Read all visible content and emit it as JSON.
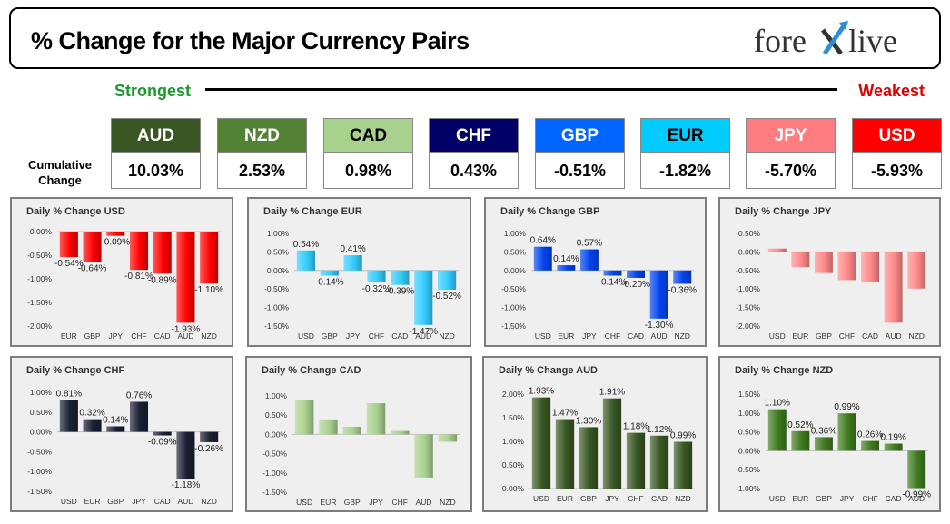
{
  "header": {
    "title": "% Change for the Major Currency Pairs",
    "logo_text_1": "fore",
    "logo_text_2": "live"
  },
  "ranking": {
    "strongest_label": "Strongest",
    "weakest_label": "Weakest",
    "cumulative_label_1": "Cumulative",
    "cumulative_label_2": "Change",
    "tiles": [
      {
        "currency": "AUD",
        "value": "10.03%",
        "color": "#385723",
        "text_color": "#ffffff"
      },
      {
        "currency": "NZD",
        "value": "2.53%",
        "color": "#548235",
        "text_color": "#ffffff"
      },
      {
        "currency": "CAD",
        "value": "0.98%",
        "color": "#a9d18e",
        "text_color": "#000000"
      },
      {
        "currency": "CHF",
        "value": "0.43%",
        "color": "#000066",
        "text_color": "#ffffff"
      },
      {
        "currency": "GBP",
        "value": "-0.51%",
        "color": "#0066ff",
        "text_color": "#ffffff"
      },
      {
        "currency": "EUR",
        "value": "-1.82%",
        "color": "#00ccff",
        "text_color": "#000000"
      },
      {
        "currency": "JPY",
        "value": "-5.70%",
        "color": "#ff7c80",
        "text_color": "#ffffff"
      },
      {
        "currency": "USD",
        "value": "-5.93%",
        "color": "#ff0000",
        "text_color": "#ffffff"
      }
    ]
  },
  "chart_data": [
    {
      "type": "bar",
      "title": "Daily % Change USD",
      "categories": [
        "EUR",
        "GBP",
        "JPY",
        "CHF",
        "CAD",
        "AUD",
        "NZD"
      ],
      "values": [
        -0.54,
        -0.64,
        -0.09,
        -0.81,
        -0.89,
        -1.93,
        -1.1
      ],
      "labels": [
        "-0.54%",
        "-0.64%",
        "-0.09%",
        "-0.81%",
        "-0.89%",
        "-1.93%",
        "-1.10%"
      ],
      "ylim": [
        -2.0,
        0.0
      ],
      "ticks": [
        0.0,
        -0.5,
        -1.0,
        -1.5,
        -2.0
      ],
      "color": "#ff0000"
    },
    {
      "type": "bar",
      "title": "Daily % Change EUR",
      "categories": [
        "USD",
        "GBP",
        "JPY",
        "CHF",
        "CAD",
        "AUD",
        "NZD"
      ],
      "values": [
        0.54,
        -0.14,
        0.41,
        -0.32,
        -0.39,
        -1.47,
        -0.52
      ],
      "labels": [
        "0.54%",
        "-0.14%",
        "0.41%",
        "-0.32%",
        "-0.39%",
        "-1.47%",
        "-0.52%"
      ],
      "ylim": [
        -1.5,
        1.0
      ],
      "ticks": [
        1.0,
        0.5,
        0.0,
        -0.5,
        -1.0,
        -1.5
      ],
      "color": "#33ccff"
    },
    {
      "type": "bar",
      "title": "Daily % Change GBP",
      "categories": [
        "USD",
        "EUR",
        "JPY",
        "CHF",
        "CAD",
        "AUD",
        "NZD"
      ],
      "values": [
        0.64,
        0.14,
        0.57,
        -0.14,
        -0.2,
        -1.3,
        -0.36
      ],
      "labels": [
        "0.64%",
        "0.14%",
        "0.57%",
        "-0.14%",
        "-0.20%",
        "-1.30%",
        "-0.36%"
      ],
      "ylim": [
        -1.5,
        1.0
      ],
      "ticks": [
        1.0,
        0.5,
        0.0,
        -0.5,
        -1.0,
        -1.5
      ],
      "color": "#0044ee"
    },
    {
      "type": "bar",
      "title": "Daily % Change JPY",
      "categories": [
        "USD",
        "EUR",
        "GBP",
        "CHF",
        "CAD",
        "AUD",
        "NZD"
      ],
      "values": [
        0.09,
        -0.41,
        -0.57,
        -0.76,
        -0.81,
        -1.91,
        -0.99
      ],
      "labels": [],
      "ylim": [
        -2.0,
        0.5
      ],
      "ticks": [
        0.5,
        0.0,
        -0.5,
        -1.0,
        -1.5,
        -2.0
      ],
      "color": "#ff8888"
    },
    {
      "type": "bar",
      "title": "Daily % Change CHF",
      "categories": [
        "USD",
        "EUR",
        "GBP",
        "JPY",
        "CAD",
        "AUD",
        "NZD"
      ],
      "values": [
        0.81,
        0.32,
        0.14,
        0.76,
        -0.09,
        -1.18,
        -0.26
      ],
      "labels": [
        "0.81%",
        "0.32%",
        "0.14%",
        "0.76%",
        "-0.09%",
        "-1.18%",
        "-0.26%"
      ],
      "ylim": [
        -1.5,
        1.0
      ],
      "ticks": [
        1.0,
        0.5,
        0.0,
        -0.5,
        -1.0,
        -1.5
      ],
      "color": "#1a1f33"
    },
    {
      "type": "bar",
      "title": "Daily % Change CAD",
      "categories": [
        "USD",
        "EUR",
        "GBP",
        "JPY",
        "CHF",
        "AUD",
        "NZD"
      ],
      "values": [
        0.89,
        0.39,
        0.2,
        0.81,
        0.09,
        -1.12,
        -0.19
      ],
      "labels": [],
      "ylim": [
        -1.5,
        1.0
      ],
      "ticks": [
        1.0,
        0.5,
        0.0,
        -0.5,
        -1.0,
        -1.5
      ],
      "color": "#a9d18e"
    },
    {
      "type": "bar",
      "title": "Daily % Change AUD",
      "categories": [
        "USD",
        "EUR",
        "GBP",
        "JPY",
        "CHF",
        "CAD",
        "NZD"
      ],
      "values": [
        1.93,
        1.47,
        1.3,
        1.91,
        1.18,
        1.12,
        0.99
      ],
      "labels": [
        "1.93%",
        "1.47%",
        "1.30%",
        "1.91%",
        "1.18%",
        "1.12%",
        "0.99%"
      ],
      "ylim": [
        0.0,
        2.0
      ],
      "ticks": [
        2.0,
        1.5,
        1.0,
        0.5,
        0.0
      ],
      "color": "#385723"
    },
    {
      "type": "bar",
      "title": "Daily % Change NZD",
      "categories": [
        "USD",
        "EUR",
        "GBP",
        "JPY",
        "CHF",
        "CAD",
        "AUD"
      ],
      "values": [
        1.1,
        0.52,
        0.36,
        0.99,
        0.26,
        0.19,
        -0.99
      ],
      "labels": [
        "1.10%",
        "0.52%",
        "0.36%",
        "0.99%",
        "0.26%",
        "0.19%",
        "-0.99%"
      ],
      "ylim": [
        -1.0,
        1.5
      ],
      "ticks": [
        1.5,
        1.0,
        0.5,
        0.0,
        -0.5,
        -1.0
      ],
      "color": "#3e7a1e"
    }
  ]
}
